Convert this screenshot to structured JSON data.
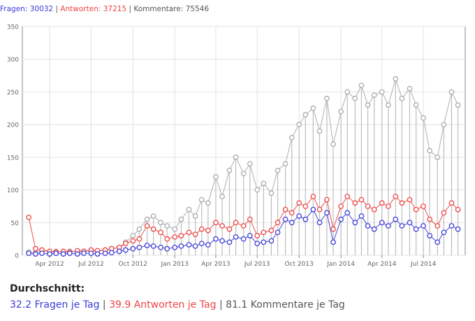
{
  "stats_header": {
    "questions_label": "Fragen:",
    "questions_value": "30032",
    "answers_label": "Antworten:",
    "answers_value": "37215",
    "comments_label": "Kommentare:",
    "comments_value": "75546",
    "separator": "|"
  },
  "averages": {
    "title": "Durchschnitt:",
    "questions": "32.2 Fragen je Tag",
    "answers": "39.9 Antworten je Tag",
    "comments": "81.1 Kommentare je Tag",
    "separator": "|"
  },
  "colors": {
    "questions": "#3c3cd8",
    "answers": "#ee4444",
    "comments": "#aaaaaa"
  },
  "chart_data": {
    "type": "line",
    "title": "",
    "xlabel": "",
    "ylabel": "",
    "ylim": [
      0,
      350
    ],
    "yticks": [
      0,
      50,
      100,
      150,
      200,
      250,
      300,
      350
    ],
    "xlim": [
      "2012-02-01",
      "2014-10-01"
    ],
    "xticks": [
      {
        "date": "2012-04-01",
        "label": "Apr 2012"
      },
      {
        "date": "2012-07-01",
        "label": "Jul 2012"
      },
      {
        "date": "2012-10-01",
        "label": "Oct 2012"
      },
      {
        "date": "2013-01-01",
        "label": "Jan 2013"
      },
      {
        "date": "2013-04-01",
        "label": "Apr 2013"
      },
      {
        "date": "2013-07-01",
        "label": "Jul 2013"
      },
      {
        "date": "2013-10-01",
        "label": "Oct 2013"
      },
      {
        "date": "2014-01-01",
        "label": "Jan 2014"
      },
      {
        "date": "2014-04-01",
        "label": "Apr 2014"
      },
      {
        "date": "2014-07-01",
        "label": "Jul 2014"
      }
    ],
    "grid": true,
    "legend": "none",
    "series": [
      {
        "name": "Kommentare",
        "color": "#aaaaaa",
        "points": [
          [
            "2012-02-15",
            5
          ],
          [
            "2012-03-01",
            4
          ],
          [
            "2012-03-15",
            7
          ],
          [
            "2012-04-01",
            5
          ],
          [
            "2012-04-15",
            6
          ],
          [
            "2012-05-01",
            4
          ],
          [
            "2012-05-15",
            6
          ],
          [
            "2012-06-01",
            5
          ],
          [
            "2012-06-15",
            6
          ],
          [
            "2012-07-01",
            7
          ],
          [
            "2012-07-15",
            6
          ],
          [
            "2012-08-01",
            8
          ],
          [
            "2012-08-15",
            10
          ],
          [
            "2012-09-01",
            12
          ],
          [
            "2012-09-15",
            20
          ],
          [
            "2012-10-01",
            30
          ],
          [
            "2012-10-15",
            40
          ],
          [
            "2012-11-01",
            55
          ],
          [
            "2012-11-15",
            60
          ],
          [
            "2012-12-01",
            50
          ],
          [
            "2012-12-15",
            45
          ],
          [
            "2013-01-01",
            40
          ],
          [
            "2013-01-15",
            55
          ],
          [
            "2013-02-01",
            70
          ],
          [
            "2013-02-15",
            60
          ],
          [
            "2013-03-01",
            85
          ],
          [
            "2013-03-15",
            80
          ],
          [
            "2013-04-01",
            120
          ],
          [
            "2013-04-15",
            90
          ],
          [
            "2013-05-01",
            130
          ],
          [
            "2013-05-15",
            150
          ],
          [
            "2013-06-01",
            125
          ],
          [
            "2013-06-15",
            140
          ],
          [
            "2013-07-01",
            100
          ],
          [
            "2013-07-15",
            110
          ],
          [
            "2013-08-01",
            95
          ],
          [
            "2013-08-15",
            130
          ],
          [
            "2013-09-01",
            140
          ],
          [
            "2013-09-15",
            180
          ],
          [
            "2013-10-01",
            200
          ],
          [
            "2013-10-15",
            215
          ],
          [
            "2013-11-01",
            225
          ],
          [
            "2013-11-15",
            190
          ],
          [
            "2013-12-01",
            240
          ],
          [
            "2013-12-15",
            170
          ],
          [
            "2014-01-01",
            220
          ],
          [
            "2014-01-15",
            250
          ],
          [
            "2014-02-01",
            240
          ],
          [
            "2014-02-15",
            260
          ],
          [
            "2014-03-01",
            230
          ],
          [
            "2014-03-15",
            245
          ],
          [
            "2014-04-01",
            250
          ],
          [
            "2014-04-15",
            230
          ],
          [
            "2014-05-01",
            270
          ],
          [
            "2014-05-15",
            240
          ],
          [
            "2014-06-01",
            255
          ],
          [
            "2014-06-15",
            230
          ],
          [
            "2014-07-01",
            210
          ],
          [
            "2014-07-15",
            160
          ],
          [
            "2014-08-01",
            150
          ],
          [
            "2014-08-15",
            200
          ],
          [
            "2014-09-01",
            250
          ],
          [
            "2014-09-15",
            230
          ]
        ]
      },
      {
        "name": "Antworten",
        "color": "#ee4444",
        "points": [
          [
            "2012-02-15",
            58
          ],
          [
            "2012-03-01",
            10
          ],
          [
            "2012-03-15",
            8
          ],
          [
            "2012-04-01",
            6
          ],
          [
            "2012-04-15",
            5
          ],
          [
            "2012-05-01",
            6
          ],
          [
            "2012-05-15",
            5
          ],
          [
            "2012-06-01",
            7
          ],
          [
            "2012-06-15",
            6
          ],
          [
            "2012-07-01",
            8
          ],
          [
            "2012-07-15",
            7
          ],
          [
            "2012-08-01",
            8
          ],
          [
            "2012-08-15",
            10
          ],
          [
            "2012-09-01",
            12
          ],
          [
            "2012-09-15",
            18
          ],
          [
            "2012-10-01",
            22
          ],
          [
            "2012-10-15",
            25
          ],
          [
            "2012-11-01",
            45
          ],
          [
            "2012-11-15",
            40
          ],
          [
            "2012-12-01",
            35
          ],
          [
            "2012-12-15",
            25
          ],
          [
            "2013-01-01",
            28
          ],
          [
            "2013-01-15",
            30
          ],
          [
            "2013-02-01",
            35
          ],
          [
            "2013-02-15",
            32
          ],
          [
            "2013-03-01",
            40
          ],
          [
            "2013-03-15",
            38
          ],
          [
            "2013-04-01",
            50
          ],
          [
            "2013-04-15",
            45
          ],
          [
            "2013-05-01",
            40
          ],
          [
            "2013-05-15",
            50
          ],
          [
            "2013-06-01",
            45
          ],
          [
            "2013-06-15",
            55
          ],
          [
            "2013-07-01",
            30
          ],
          [
            "2013-07-15",
            35
          ],
          [
            "2013-08-01",
            38
          ],
          [
            "2013-08-15",
            50
          ],
          [
            "2013-09-01",
            70
          ],
          [
            "2013-09-15",
            65
          ],
          [
            "2013-10-01",
            80
          ],
          [
            "2013-10-15",
            75
          ],
          [
            "2013-11-01",
            90
          ],
          [
            "2013-11-15",
            70
          ],
          [
            "2013-12-01",
            85
          ],
          [
            "2013-12-15",
            40
          ],
          [
            "2014-01-01",
            75
          ],
          [
            "2014-01-15",
            90
          ],
          [
            "2014-02-01",
            80
          ],
          [
            "2014-02-15",
            85
          ],
          [
            "2014-03-01",
            75
          ],
          [
            "2014-03-15",
            70
          ],
          [
            "2014-04-01",
            80
          ],
          [
            "2014-04-15",
            75
          ],
          [
            "2014-05-01",
            90
          ],
          [
            "2014-05-15",
            80
          ],
          [
            "2014-06-01",
            85
          ],
          [
            "2014-06-15",
            70
          ],
          [
            "2014-07-01",
            75
          ],
          [
            "2014-07-15",
            55
          ],
          [
            "2014-08-01",
            45
          ],
          [
            "2014-08-15",
            65
          ],
          [
            "2014-09-01",
            80
          ],
          [
            "2014-09-15",
            70
          ]
        ]
      },
      {
        "name": "Fragen",
        "color": "#3c3cd8",
        "points": [
          [
            "2012-02-15",
            3
          ],
          [
            "2012-03-01",
            2
          ],
          [
            "2012-03-15",
            3
          ],
          [
            "2012-04-01",
            2
          ],
          [
            "2012-04-15",
            3
          ],
          [
            "2012-05-01",
            2
          ],
          [
            "2012-05-15",
            3
          ],
          [
            "2012-06-01",
            2
          ],
          [
            "2012-06-15",
            3
          ],
          [
            "2012-07-01",
            3
          ],
          [
            "2012-07-15",
            2
          ],
          [
            "2012-08-01",
            3
          ],
          [
            "2012-08-15",
            4
          ],
          [
            "2012-09-01",
            6
          ],
          [
            "2012-09-15",
            8
          ],
          [
            "2012-10-01",
            10
          ],
          [
            "2012-10-15",
            12
          ],
          [
            "2012-11-01",
            15
          ],
          [
            "2012-11-15",
            14
          ],
          [
            "2012-12-01",
            12
          ],
          [
            "2012-12-15",
            10
          ],
          [
            "2013-01-01",
            12
          ],
          [
            "2013-01-15",
            14
          ],
          [
            "2013-02-01",
            16
          ],
          [
            "2013-02-15",
            14
          ],
          [
            "2013-03-01",
            18
          ],
          [
            "2013-03-15",
            16
          ],
          [
            "2013-04-01",
            25
          ],
          [
            "2013-04-15",
            22
          ],
          [
            "2013-05-01",
            20
          ],
          [
            "2013-05-15",
            28
          ],
          [
            "2013-06-01",
            25
          ],
          [
            "2013-06-15",
            30
          ],
          [
            "2013-07-01",
            18
          ],
          [
            "2013-07-15",
            20
          ],
          [
            "2013-08-01",
            22
          ],
          [
            "2013-08-15",
            35
          ],
          [
            "2013-09-01",
            55
          ],
          [
            "2013-09-15",
            50
          ],
          [
            "2013-10-01",
            60
          ],
          [
            "2013-10-15",
            55
          ],
          [
            "2013-11-01",
            70
          ],
          [
            "2013-11-15",
            50
          ],
          [
            "2013-12-01",
            65
          ],
          [
            "2013-12-15",
            20
          ],
          [
            "2014-01-01",
            55
          ],
          [
            "2014-01-15",
            65
          ],
          [
            "2014-02-01",
            50
          ],
          [
            "2014-02-15",
            60
          ],
          [
            "2014-03-01",
            45
          ],
          [
            "2014-03-15",
            40
          ],
          [
            "2014-04-01",
            50
          ],
          [
            "2014-04-15",
            45
          ],
          [
            "2014-05-01",
            55
          ],
          [
            "2014-05-15",
            45
          ],
          [
            "2014-06-01",
            50
          ],
          [
            "2014-06-15",
            40
          ],
          [
            "2014-07-01",
            45
          ],
          [
            "2014-07-15",
            30
          ],
          [
            "2014-08-01",
            20
          ],
          [
            "2014-08-15",
            35
          ],
          [
            "2014-09-01",
            45
          ],
          [
            "2014-09-15",
            40
          ]
        ]
      }
    ]
  }
}
